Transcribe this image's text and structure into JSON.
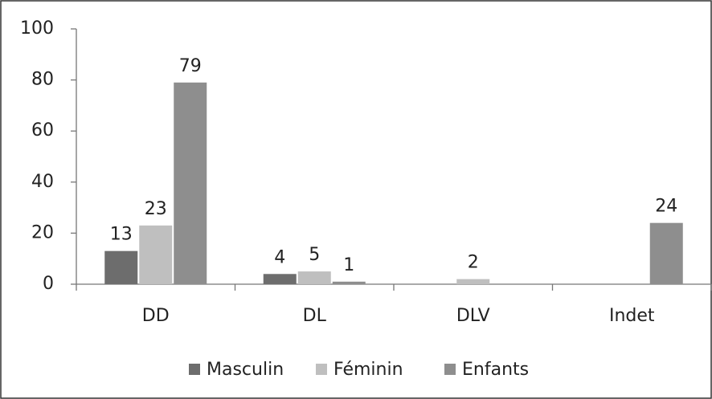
{
  "chart_data": {
    "type": "bar",
    "categories": [
      "DD",
      "DL",
      "DLV",
      "Indet"
    ],
    "series": [
      {
        "name": "Masculin",
        "color": "#6d6d6d",
        "values": [
          13,
          4,
          null,
          null
        ]
      },
      {
        "name": "Féminin",
        "color": "#bfbfbf",
        "values": [
          23,
          5,
          2,
          null
        ]
      },
      {
        "name": "Enfants",
        "color": "#8e8e8e",
        "values": [
          79,
          1,
          null,
          24
        ]
      }
    ],
    "ylim": [
      0,
      100
    ],
    "yticks": [
      0,
      20,
      40,
      60,
      80,
      100
    ],
    "grid": false,
    "legend": "bottom"
  }
}
